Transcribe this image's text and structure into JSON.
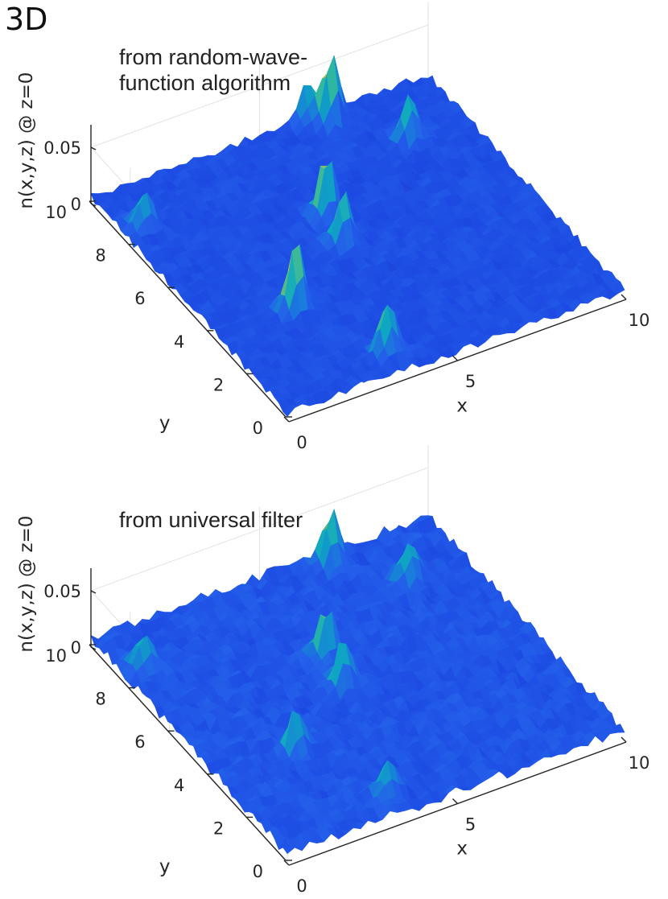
{
  "panel_label": "3D",
  "colors": {
    "low": "#3543e6",
    "mid": "#2fb8c9",
    "high": "#f2c331",
    "axis": "#262626",
    "grid": "#e2e2e2"
  },
  "chart_data": [
    {
      "type": "surface",
      "title": "from random-wave-\nfunction algorithm",
      "title_lines": [
        "from random-wave-",
        "function algorithm"
      ],
      "xlabel": "x",
      "ylabel": "y",
      "zlabel": "n(x,y,z) @ z=0",
      "xlim": [
        0,
        10
      ],
      "ylim": [
        0,
        10
      ],
      "zlim": [
        0,
        0.07
      ],
      "x_ticks": [
        "0",
        "5",
        "10"
      ],
      "y_ticks": [
        "0",
        "2",
        "4",
        "6",
        "8",
        "10"
      ],
      "z_ticks": [
        "0",
        "0.05"
      ],
      "colormap": "parula",
      "grid": true,
      "background_level": 0.006,
      "peaks": [
        {
          "x": 2.3,
          "y": 3.5,
          "z": 0.062
        },
        {
          "x": 6.9,
          "y": 9.6,
          "z": 0.058
        },
        {
          "x": 4.9,
          "y": 6.4,
          "z": 0.055
        },
        {
          "x": 4.7,
          "y": 5.2,
          "z": 0.045
        },
        {
          "x": 3.5,
          "y": 0.9,
          "z": 0.045
        },
        {
          "x": 0.6,
          "y": 8.3,
          "z": 0.032
        },
        {
          "x": 8.3,
          "y": 8.0,
          "z": 0.038
        },
        {
          "x": 6.4,
          "y": 10.0,
          "z": 0.03
        }
      ]
    },
    {
      "type": "surface",
      "title": "from universal filter",
      "title_lines": [
        "from universal filter"
      ],
      "xlabel": "x",
      "ylabel": "y",
      "zlabel": "n(x,y,z) @ z=0",
      "xlim": [
        0,
        10
      ],
      "ylim": [
        0,
        10
      ],
      "zlim": [
        0,
        0.07
      ],
      "x_ticks": [
        "0",
        "5",
        "10"
      ],
      "y_ticks": [
        "0",
        "2",
        "4",
        "6",
        "8",
        "10"
      ],
      "z_ticks": [
        "0",
        "0.05"
      ],
      "colormap": "parula",
      "grid": true,
      "background_level": 0.008,
      "peaks": [
        {
          "x": 6.9,
          "y": 9.6,
          "z": 0.05
        },
        {
          "x": 4.9,
          "y": 6.4,
          "z": 0.045
        },
        {
          "x": 2.3,
          "y": 3.5,
          "z": 0.038
        },
        {
          "x": 4.7,
          "y": 5.2,
          "z": 0.04
        },
        {
          "x": 0.6,
          "y": 8.3,
          "z": 0.03
        },
        {
          "x": 3.5,
          "y": 0.9,
          "z": 0.03
        },
        {
          "x": 8.3,
          "y": 8.0,
          "z": 0.03
        }
      ]
    }
  ]
}
